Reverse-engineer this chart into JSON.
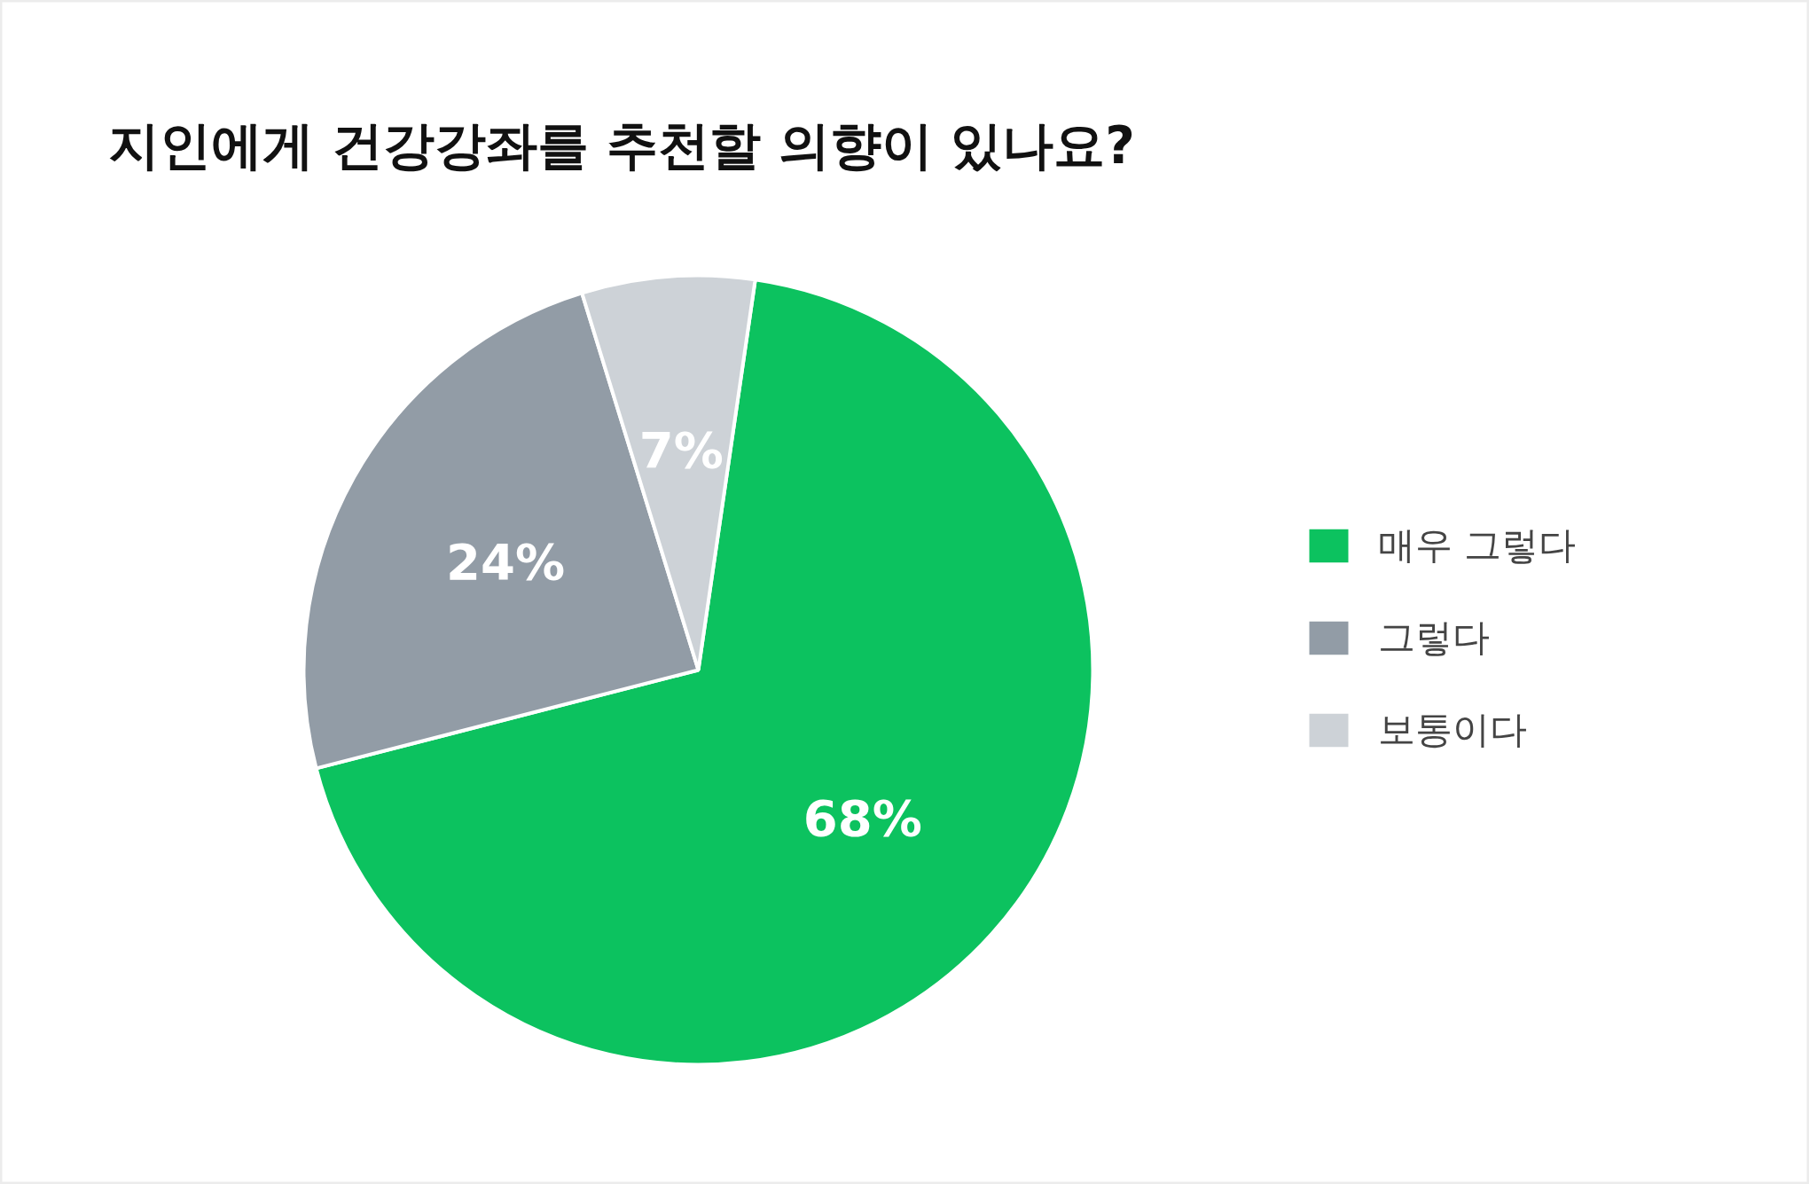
{
  "chart_data": {
    "type": "pie",
    "title": "지인에게 건강강좌를 추천할 의향이 있나요?",
    "categories": [
      "매우 그렇다",
      "그렇다",
      "보통이다"
    ],
    "values": [
      68,
      24,
      7
    ],
    "colors": [
      "#0cc25f",
      "#929ca6",
      "#cdd2d7"
    ],
    "value_labels": [
      "68%",
      "24%",
      "7%"
    ],
    "legend": "right"
  }
}
